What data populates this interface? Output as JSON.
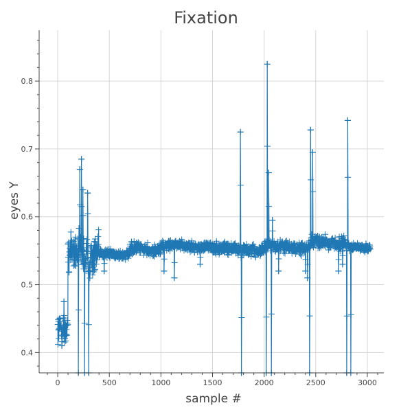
{
  "chart_data": {
    "type": "line",
    "title": "Fixation",
    "xlabel": "sample #",
    "ylabel": "eyes Y",
    "xlim": [
      -180,
      3160
    ],
    "ylim": [
      0.37,
      0.875
    ],
    "x_ticks": [
      0,
      500,
      1000,
      1500,
      2000,
      2500,
      3000
    ],
    "y_ticks": [
      0.4,
      0.5,
      0.6,
      0.7,
      0.8
    ],
    "grid": true,
    "legend": "none",
    "marker": "cross",
    "color": "#1f77b4",
    "segments": [
      {
        "x_start": 0,
        "x_end": 100,
        "base": 0.435,
        "spread": 0.012
      },
      {
        "x_start": 100,
        "x_end": 400,
        "base": 0.545,
        "spread": 0.02
      },
      {
        "x_start": 400,
        "x_end": 700,
        "base": 0.545,
        "spread": 0.005
      },
      {
        "x_start": 700,
        "x_end": 1000,
        "base": 0.552,
        "spread": 0.006
      },
      {
        "x_start": 1000,
        "x_end": 1500,
        "base": 0.557,
        "spread": 0.005
      },
      {
        "x_start": 1500,
        "x_end": 2000,
        "base": 0.552,
        "spread": 0.007
      },
      {
        "x_start": 2000,
        "x_end": 2450,
        "base": 0.555,
        "spread": 0.006
      },
      {
        "x_start": 2450,
        "x_end": 2800,
        "base": 0.562,
        "spread": 0.007
      },
      {
        "x_start": 2800,
        "x_end": 3030,
        "base": 0.555,
        "spread": 0.004
      }
    ],
    "spikes": [
      {
        "x": 40,
        "y": 0.41
      },
      {
        "x": 60,
        "y": 0.475
      },
      {
        "x": 100,
        "y": 0.56
      },
      {
        "x": 200,
        "y": 0.37
      },
      {
        "x": 215,
        "y": 0.67
      },
      {
        "x": 230,
        "y": 0.685
      },
      {
        "x": 245,
        "y": 0.64
      },
      {
        "x": 260,
        "y": 0.37
      },
      {
        "x": 290,
        "y": 0.635
      },
      {
        "x": 300,
        "y": 0.37
      },
      {
        "x": 1770,
        "y": 0.725
      },
      {
        "x": 1780,
        "y": 0.37
      },
      {
        "x": 2020,
        "y": 0.37
      },
      {
        "x": 2030,
        "y": 0.825
      },
      {
        "x": 2045,
        "y": 0.665
      },
      {
        "x": 2070,
        "y": 0.37
      },
      {
        "x": 2080,
        "y": 0.595
      },
      {
        "x": 2440,
        "y": 0.37
      },
      {
        "x": 2450,
        "y": 0.728
      },
      {
        "x": 2470,
        "y": 0.695
      },
      {
        "x": 2800,
        "y": 0.37
      },
      {
        "x": 2810,
        "y": 0.742
      },
      {
        "x": 2840,
        "y": 0.37
      }
    ],
    "dips": [
      {
        "x": 450,
        "y": 0.52
      },
      {
        "x": 1030,
        "y": 0.52
      },
      {
        "x": 1130,
        "y": 0.51
      },
      {
        "x": 1380,
        "y": 0.53
      },
      {
        "x": 2140,
        "y": 0.52
      },
      {
        "x": 2400,
        "y": 0.52
      },
      {
        "x": 2420,
        "y": 0.51
      },
      {
        "x": 2720,
        "y": 0.52
      },
      {
        "x": 2760,
        "y": 0.53
      }
    ]
  }
}
